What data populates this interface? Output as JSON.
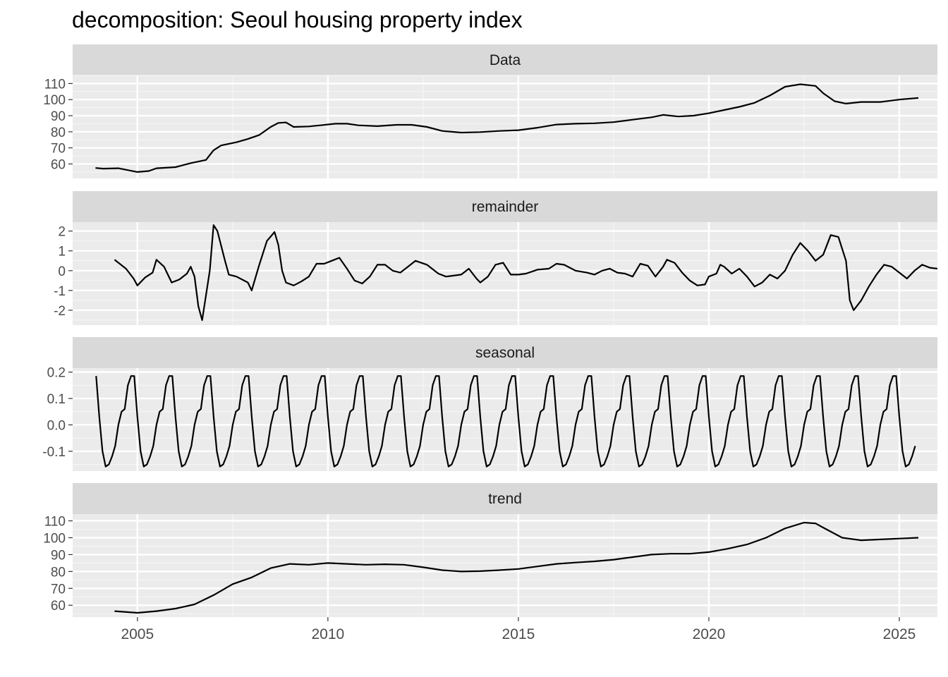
{
  "chart_data": {
    "type": "line",
    "title": "decomposition: Seoul housing property index",
    "xlabel": "",
    "ylabel": "",
    "xlim": [
      2003.3,
      2026.0
    ],
    "x_ticks": [
      2005,
      2010,
      2015,
      2020,
      2025
    ],
    "x_tick_labels": [
      "2005",
      "2010",
      "2015",
      "2020",
      "2025"
    ],
    "grid": true,
    "panels": [
      {
        "name": "Data",
        "ylim": [
          51,
          115
        ],
        "y_ticks": [
          60,
          70,
          80,
          90,
          100,
          110
        ],
        "y_tick_labels": [
          "60",
          "70",
          "80",
          "90",
          "100",
          "110"
        ],
        "points": [
          [
            2003.9,
            57.5
          ],
          [
            2004.1,
            57.1
          ],
          [
            2004.5,
            57.3
          ],
          [
            2005.0,
            55.0
          ],
          [
            2005.3,
            55.6
          ],
          [
            2005.5,
            57.3
          ],
          [
            2006.0,
            58.0
          ],
          [
            2006.4,
            60.5
          ],
          [
            2006.8,
            62.5
          ],
          [
            2007.0,
            68.5
          ],
          [
            2007.2,
            71.5
          ],
          [
            2007.6,
            73.5
          ],
          [
            2007.9,
            75.5
          ],
          [
            2008.2,
            78.0
          ],
          [
            2008.5,
            83.0
          ],
          [
            2008.7,
            85.5
          ],
          [
            2008.9,
            85.8
          ],
          [
            2009.1,
            83.0
          ],
          [
            2009.5,
            83.3
          ],
          [
            2009.8,
            84.0
          ],
          [
            2010.2,
            85.0
          ],
          [
            2010.5,
            85.0
          ],
          [
            2010.8,
            84.0
          ],
          [
            2011.3,
            83.5
          ],
          [
            2011.8,
            84.3
          ],
          [
            2012.2,
            84.3
          ],
          [
            2012.6,
            83.0
          ],
          [
            2013.0,
            80.5
          ],
          [
            2013.5,
            79.5
          ],
          [
            2014.0,
            79.8
          ],
          [
            2014.5,
            80.5
          ],
          [
            2015.0,
            81.0
          ],
          [
            2015.5,
            82.5
          ],
          [
            2016.0,
            84.5
          ],
          [
            2016.5,
            85.0
          ],
          [
            2017.0,
            85.3
          ],
          [
            2017.5,
            86.0
          ],
          [
            2018.0,
            87.5
          ],
          [
            2018.5,
            89.0
          ],
          [
            2018.8,
            90.5
          ],
          [
            2019.2,
            89.5
          ],
          [
            2019.6,
            90.0
          ],
          [
            2020.0,
            91.5
          ],
          [
            2020.4,
            93.5
          ],
          [
            2020.8,
            95.5
          ],
          [
            2021.2,
            98.0
          ],
          [
            2021.6,
            102.5
          ],
          [
            2022.0,
            108.0
          ],
          [
            2022.4,
            109.5
          ],
          [
            2022.8,
            108.5
          ],
          [
            2023.0,
            104.0
          ],
          [
            2023.3,
            99.0
          ],
          [
            2023.6,
            97.5
          ],
          [
            2024.0,
            98.5
          ],
          [
            2024.5,
            98.5
          ],
          [
            2025.0,
            100.0
          ],
          [
            2025.5,
            101.0
          ]
        ]
      },
      {
        "name": "remainder",
        "ylim": [
          -2.75,
          2.45
        ],
        "y_ticks": [
          -2,
          -1,
          0,
          1,
          2
        ],
        "y_tick_labels": [
          "-2",
          "-1",
          "0",
          "1",
          "2"
        ],
        "points": [
          [
            2004.4,
            0.55
          ],
          [
            2004.7,
            0.1
          ],
          [
            2004.9,
            -0.4
          ],
          [
            2005.0,
            -0.75
          ],
          [
            2005.2,
            -0.35
          ],
          [
            2005.4,
            -0.1
          ],
          [
            2005.5,
            0.55
          ],
          [
            2005.7,
            0.2
          ],
          [
            2005.9,
            -0.6
          ],
          [
            2006.1,
            -0.45
          ],
          [
            2006.3,
            -0.15
          ],
          [
            2006.4,
            0.2
          ],
          [
            2006.5,
            -0.3
          ],
          [
            2006.6,
            -1.8
          ],
          [
            2006.7,
            -2.5
          ],
          [
            2006.9,
            0.0
          ],
          [
            2007.0,
            2.3
          ],
          [
            2007.1,
            2.0
          ],
          [
            2007.3,
            0.5
          ],
          [
            2007.4,
            -0.2
          ],
          [
            2007.6,
            -0.3
          ],
          [
            2007.9,
            -0.6
          ],
          [
            2008.0,
            -1.0
          ],
          [
            2008.2,
            0.3
          ],
          [
            2008.4,
            1.5
          ],
          [
            2008.6,
            1.95
          ],
          [
            2008.7,
            1.3
          ],
          [
            2008.8,
            0.0
          ],
          [
            2008.9,
            -0.6
          ],
          [
            2009.1,
            -0.75
          ],
          [
            2009.3,
            -0.55
          ],
          [
            2009.5,
            -0.3
          ],
          [
            2009.7,
            0.35
          ],
          [
            2009.9,
            0.35
          ],
          [
            2010.1,
            0.5
          ],
          [
            2010.3,
            0.65
          ],
          [
            2010.5,
            0.1
          ],
          [
            2010.7,
            -0.5
          ],
          [
            2010.9,
            -0.65
          ],
          [
            2011.1,
            -0.3
          ],
          [
            2011.3,
            0.3
          ],
          [
            2011.5,
            0.3
          ],
          [
            2011.7,
            0.0
          ],
          [
            2011.9,
            -0.1
          ],
          [
            2012.1,
            0.2
          ],
          [
            2012.3,
            0.5
          ],
          [
            2012.6,
            0.3
          ],
          [
            2012.9,
            -0.15
          ],
          [
            2013.1,
            -0.3
          ],
          [
            2013.5,
            -0.2
          ],
          [
            2013.7,
            0.1
          ],
          [
            2013.9,
            -0.4
          ],
          [
            2014.0,
            -0.6
          ],
          [
            2014.2,
            -0.3
          ],
          [
            2014.4,
            0.3
          ],
          [
            2014.6,
            0.4
          ],
          [
            2014.8,
            -0.2
          ],
          [
            2015.0,
            -0.2
          ],
          [
            2015.2,
            -0.15
          ],
          [
            2015.5,
            0.05
          ],
          [
            2015.8,
            0.1
          ],
          [
            2016.0,
            0.35
          ],
          [
            2016.2,
            0.3
          ],
          [
            2016.5,
            0.0
          ],
          [
            2016.8,
            -0.1
          ],
          [
            2017.0,
            -0.2
          ],
          [
            2017.2,
            0.0
          ],
          [
            2017.4,
            0.1
          ],
          [
            2017.6,
            -0.1
          ],
          [
            2017.8,
            -0.15
          ],
          [
            2018.0,
            -0.3
          ],
          [
            2018.2,
            0.35
          ],
          [
            2018.4,
            0.25
          ],
          [
            2018.6,
            -0.3
          ],
          [
            2018.8,
            0.2
          ],
          [
            2018.9,
            0.55
          ],
          [
            2019.1,
            0.4
          ],
          [
            2019.3,
            -0.1
          ],
          [
            2019.5,
            -0.5
          ],
          [
            2019.7,
            -0.75
          ],
          [
            2019.9,
            -0.7
          ],
          [
            2020.0,
            -0.3
          ],
          [
            2020.2,
            -0.15
          ],
          [
            2020.3,
            0.3
          ],
          [
            2020.4,
            0.2
          ],
          [
            2020.6,
            -0.15
          ],
          [
            2020.8,
            0.1
          ],
          [
            2021.0,
            -0.3
          ],
          [
            2021.2,
            -0.8
          ],
          [
            2021.4,
            -0.6
          ],
          [
            2021.6,
            -0.2
          ],
          [
            2021.8,
            -0.4
          ],
          [
            2022.0,
            0.0
          ],
          [
            2022.2,
            0.8
          ],
          [
            2022.4,
            1.4
          ],
          [
            2022.6,
            1.0
          ],
          [
            2022.8,
            0.5
          ],
          [
            2023.0,
            0.8
          ],
          [
            2023.2,
            1.8
          ],
          [
            2023.4,
            1.7
          ],
          [
            2023.6,
            0.5
          ],
          [
            2023.7,
            -1.5
          ],
          [
            2023.8,
            -2.0
          ],
          [
            2024.0,
            -1.5
          ],
          [
            2024.2,
            -0.8
          ],
          [
            2024.4,
            -0.2
          ],
          [
            2024.6,
            0.3
          ],
          [
            2024.8,
            0.2
          ],
          [
            2025.0,
            -0.1
          ],
          [
            2025.2,
            -0.4
          ],
          [
            2025.4,
            0.0
          ],
          [
            2025.6,
            0.3
          ],
          [
            2025.8,
            0.15
          ],
          [
            2026.0,
            0.1
          ]
        ]
      },
      {
        "name": "seasonal",
        "ylim": [
          -0.175,
          0.215
        ],
        "y_ticks": [
          -0.1,
          0.0,
          0.1,
          0.2
        ],
        "y_tick_labels": [
          "-0.1",
          "0.0",
          "0.1",
          "0.2"
        ],
        "season_start": 2003.917,
        "season_end": 2025.5,
        "season_period": 1.0,
        "season_pattern": [
          0.185,
          0.03,
          -0.1,
          -0.158,
          -0.15,
          -0.12,
          -0.08,
          0.0,
          0.05,
          0.06,
          0.15,
          0.185
        ]
      },
      {
        "name": "trend",
        "ylim": [
          53,
          114
        ],
        "y_ticks": [
          60,
          70,
          80,
          90,
          100,
          110
        ],
        "y_tick_labels": [
          "60",
          "70",
          "80",
          "90",
          "100",
          "110"
        ],
        "points": [
          [
            2004.4,
            56.5
          ],
          [
            2005.0,
            55.5
          ],
          [
            2005.5,
            56.5
          ],
          [
            2006.0,
            58.0
          ],
          [
            2006.5,
            60.5
          ],
          [
            2007.0,
            66.0
          ],
          [
            2007.5,
            72.5
          ],
          [
            2008.0,
            76.5
          ],
          [
            2008.5,
            82.0
          ],
          [
            2009.0,
            84.5
          ],
          [
            2009.5,
            84.0
          ],
          [
            2010.0,
            85.0
          ],
          [
            2010.5,
            84.5
          ],
          [
            2011.0,
            84.0
          ],
          [
            2011.5,
            84.3
          ],
          [
            2012.0,
            84.0
          ],
          [
            2012.5,
            82.5
          ],
          [
            2013.0,
            80.8
          ],
          [
            2013.5,
            80.0
          ],
          [
            2014.0,
            80.2
          ],
          [
            2014.5,
            80.8
          ],
          [
            2015.0,
            81.5
          ],
          [
            2015.5,
            83.0
          ],
          [
            2016.0,
            84.5
          ],
          [
            2016.5,
            85.3
          ],
          [
            2017.0,
            86.0
          ],
          [
            2017.5,
            87.0
          ],
          [
            2018.0,
            88.5
          ],
          [
            2018.5,
            90.0
          ],
          [
            2019.0,
            90.5
          ],
          [
            2019.5,
            90.5
          ],
          [
            2020.0,
            91.5
          ],
          [
            2020.5,
            93.5
          ],
          [
            2021.0,
            96.0
          ],
          [
            2021.5,
            100.0
          ],
          [
            2022.0,
            105.5
          ],
          [
            2022.5,
            109.0
          ],
          [
            2022.8,
            108.5
          ],
          [
            2023.0,
            106.0
          ],
          [
            2023.5,
            100.0
          ],
          [
            2024.0,
            98.5
          ],
          [
            2024.5,
            99.0
          ],
          [
            2025.0,
            99.5
          ],
          [
            2025.5,
            100.0
          ]
        ]
      }
    ]
  }
}
